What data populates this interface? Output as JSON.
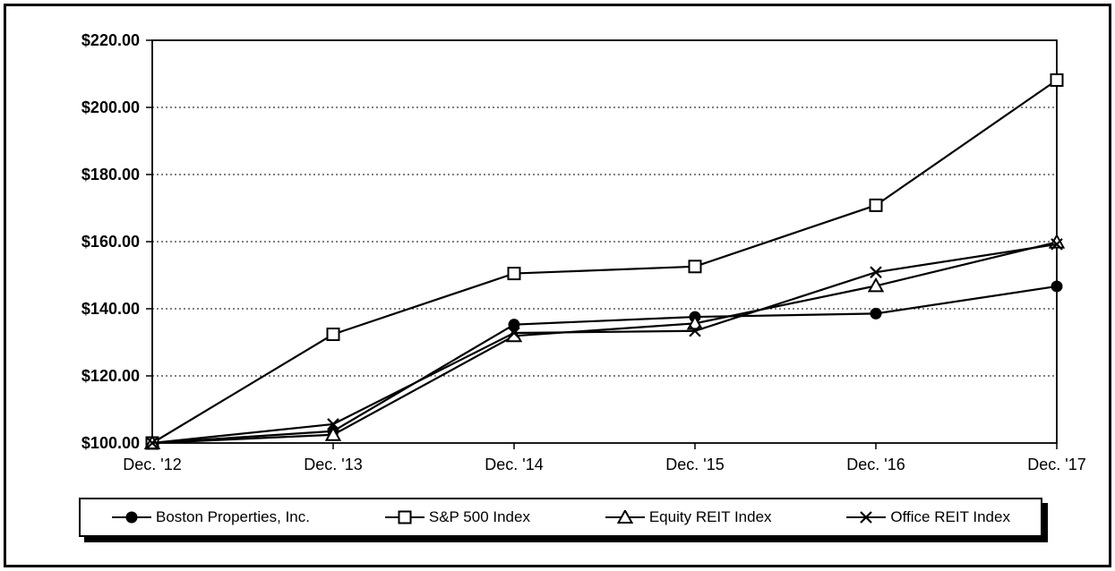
{
  "chart_data": {
    "type": "line",
    "title": "",
    "categories": [
      "Dec. '12",
      "Dec. '13",
      "Dec. '14",
      "Dec. '15",
      "Dec. '16",
      "Dec. '17"
    ],
    "series": [
      {
        "name": "Boston Properties, Inc.",
        "marker": "filled-circle",
        "values": [
          100.0,
          103.53,
          135.29,
          137.58,
          138.56,
          146.68
        ]
      },
      {
        "name": "S&P 500 Index",
        "marker": "open-square",
        "values": [
          100.0,
          132.39,
          150.51,
          152.59,
          170.84,
          208.14
        ]
      },
      {
        "name": "Equity REIT Index",
        "marker": "open-triangle",
        "values": [
          100.0,
          102.47,
          131.92,
          135.64,
          146.83,
          159.85
        ]
      },
      {
        "name": "Office REIT Index",
        "marker": "x-cross",
        "values": [
          100.0,
          105.61,
          132.8,
          133.4,
          150.89,
          159.23
        ]
      }
    ],
    "ylim": [
      100,
      220
    ],
    "y_ticks": [
      {
        "value": 100,
        "label": "$100.00"
      },
      {
        "value": 120,
        "label": "$120.00"
      },
      {
        "value": 140,
        "label": "$140.00"
      },
      {
        "value": 160,
        "label": "$160.00"
      },
      {
        "value": 180,
        "label": "$180.00"
      },
      {
        "value": 200,
        "label": "$200.00"
      },
      {
        "value": 220,
        "label": "$220.00"
      }
    ],
    "grid": "horizontal-dashed",
    "legend_position": "bottom",
    "line_color": "#000000"
  }
}
